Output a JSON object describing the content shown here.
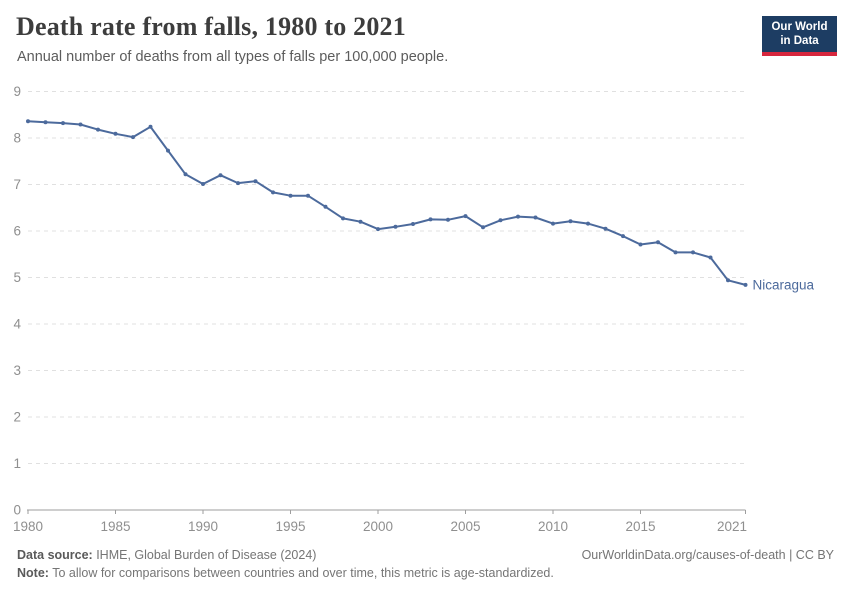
{
  "header": {
    "title": "Death rate from falls, 1980 to 2021",
    "subtitle": "Annual number of deaths from all types of falls per 100,000 people."
  },
  "logo": {
    "line1": "Our World",
    "line2": "in Data",
    "bg_color": "#1d3d63",
    "stripe_color": "#d7263d"
  },
  "chart_data": {
    "type": "line",
    "title": "Death rate from falls, 1980 to 2021",
    "xlabel": "",
    "ylabel": "",
    "x": [
      1980,
      1981,
      1982,
      1983,
      1984,
      1985,
      1986,
      1987,
      1988,
      1989,
      1990,
      1991,
      1992,
      1993,
      1994,
      1995,
      1996,
      1997,
      1998,
      1999,
      2000,
      2001,
      2002,
      2003,
      2004,
      2005,
      2006,
      2007,
      2008,
      2009,
      2010,
      2011,
      2012,
      2013,
      2014,
      2015,
      2016,
      2017,
      2018,
      2019,
      2020,
      2021
    ],
    "series": [
      {
        "name": "Nicaragua",
        "color": "#4c6a9c",
        "values": [
          8.36,
          8.34,
          8.32,
          8.29,
          8.18,
          8.09,
          8.02,
          8.24,
          7.73,
          7.22,
          7.01,
          7.2,
          7.03,
          7.07,
          6.83,
          6.76,
          6.76,
          6.52,
          6.27,
          6.2,
          6.04,
          6.09,
          6.15,
          6.25,
          6.24,
          6.32,
          6.08,
          6.23,
          6.31,
          6.29,
          6.16,
          6.21,
          6.16,
          6.05,
          5.89,
          5.71,
          5.76,
          5.54,
          5.54,
          5.43,
          4.94,
          4.84
        ]
      }
    ],
    "entity_label": "Nicaragua",
    "xlim": [
      1980,
      2021
    ],
    "ylim": [
      0,
      9
    ],
    "yticks": [
      0,
      1,
      2,
      3,
      4,
      5,
      6,
      7,
      8,
      9
    ],
    "xticks": [
      1980,
      1985,
      1990,
      1995,
      2000,
      2005,
      2010,
      2015,
      2021
    ],
    "grid": "horizontal-dashed",
    "legend_position": "end-of-line"
  },
  "colors": {
    "line": "#4c6a9c",
    "gridline": "#e0e0e0",
    "axis": "#9e9e9e",
    "tick_label": "#8f8f8f"
  },
  "footer": {
    "source_label": "Data source:",
    "source_text": " IHME, Global Burden of Disease (2024)",
    "note_label": "Note:",
    "note_text": " To allow for comparisons between countries and over time, this metric is age-standardized.",
    "right_text": "OurWorldinData.org/causes-of-death | CC BY"
  }
}
